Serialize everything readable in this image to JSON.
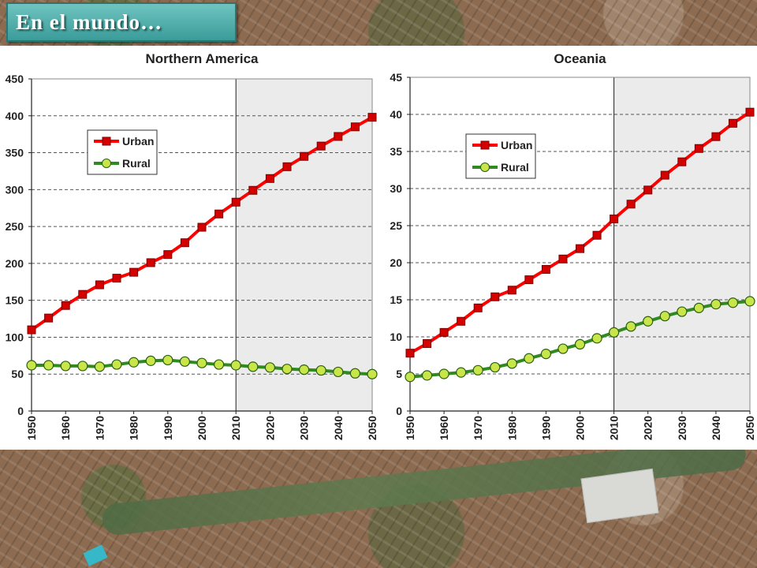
{
  "slide": {
    "title": "En el mundo…"
  },
  "colors": {
    "urban": "#ff0000",
    "urban_marker": "#d40000",
    "rural": "#2f8a1f",
    "rural_marker": "#c8e64a",
    "projection_shade": "#ebebeb"
  },
  "chart_data": [
    {
      "type": "line",
      "title": "Northern America",
      "x": [
        1950,
        1955,
        1960,
        1965,
        1970,
        1975,
        1980,
        1985,
        1990,
        1995,
        2000,
        2005,
        2010,
        2015,
        2020,
        2025,
        2030,
        2035,
        2040,
        2045,
        2050
      ],
      "x_ticks": [
        1950,
        1960,
        1970,
        1980,
        1990,
        2000,
        2010,
        2020,
        2030,
        2040,
        2050
      ],
      "y_ticks": [
        0,
        50,
        100,
        150,
        200,
        250,
        300,
        350,
        400,
        450
      ],
      "ylim": [
        0,
        450
      ],
      "xlim": [
        1950,
        2050
      ],
      "grid": "horizontal dashed",
      "projection_from": 2010,
      "legend_position": "upper-left",
      "series": [
        {
          "name": "Urban",
          "color": "urban",
          "values": [
            110,
            126,
            143,
            158,
            171,
            180,
            188,
            201,
            212,
            228,
            249,
            267,
            283,
            299,
            315,
            331,
            345,
            359,
            372,
            385,
            398
          ]
        },
        {
          "name": "Rural",
          "color": "rural",
          "values": [
            62,
            62,
            61,
            61,
            60,
            63,
            66,
            68,
            69,
            67,
            65,
            63,
            62,
            60,
            59,
            57,
            56,
            55,
            53,
            51,
            50
          ]
        }
      ]
    },
    {
      "type": "line",
      "title": "Oceania",
      "x": [
        1950,
        1955,
        1960,
        1965,
        1970,
        1975,
        1980,
        1985,
        1990,
        1995,
        2000,
        2005,
        2010,
        2015,
        2020,
        2025,
        2030,
        2035,
        2040,
        2045,
        2050
      ],
      "x_ticks": [
        1950,
        1960,
        1970,
        1980,
        1990,
        2000,
        2010,
        2020,
        2030,
        2040,
        2050
      ],
      "y_ticks": [
        0,
        5,
        10,
        15,
        20,
        25,
        30,
        35,
        40,
        45
      ],
      "ylim": [
        0,
        45
      ],
      "xlim": [
        1950,
        2050
      ],
      "grid": "horizontal dashed",
      "projection_from": 2010,
      "legend_position": "upper-left",
      "series": [
        {
          "name": "Urban",
          "color": "urban",
          "values": [
            7.8,
            9.1,
            10.6,
            12.1,
            13.9,
            15.4,
            16.3,
            17.7,
            19.1,
            20.5,
            21.9,
            23.7,
            25.9,
            27.9,
            29.8,
            31.8,
            33.6,
            35.4,
            37.0,
            38.8,
            40.3
          ]
        },
        {
          "name": "Rural",
          "color": "rural",
          "values": [
            4.6,
            4.8,
            5.0,
            5.2,
            5.5,
            5.9,
            6.4,
            7.1,
            7.7,
            8.4,
            9.0,
            9.8,
            10.6,
            11.4,
            12.1,
            12.8,
            13.4,
            13.9,
            14.4,
            14.6,
            14.8
          ]
        }
      ]
    }
  ]
}
